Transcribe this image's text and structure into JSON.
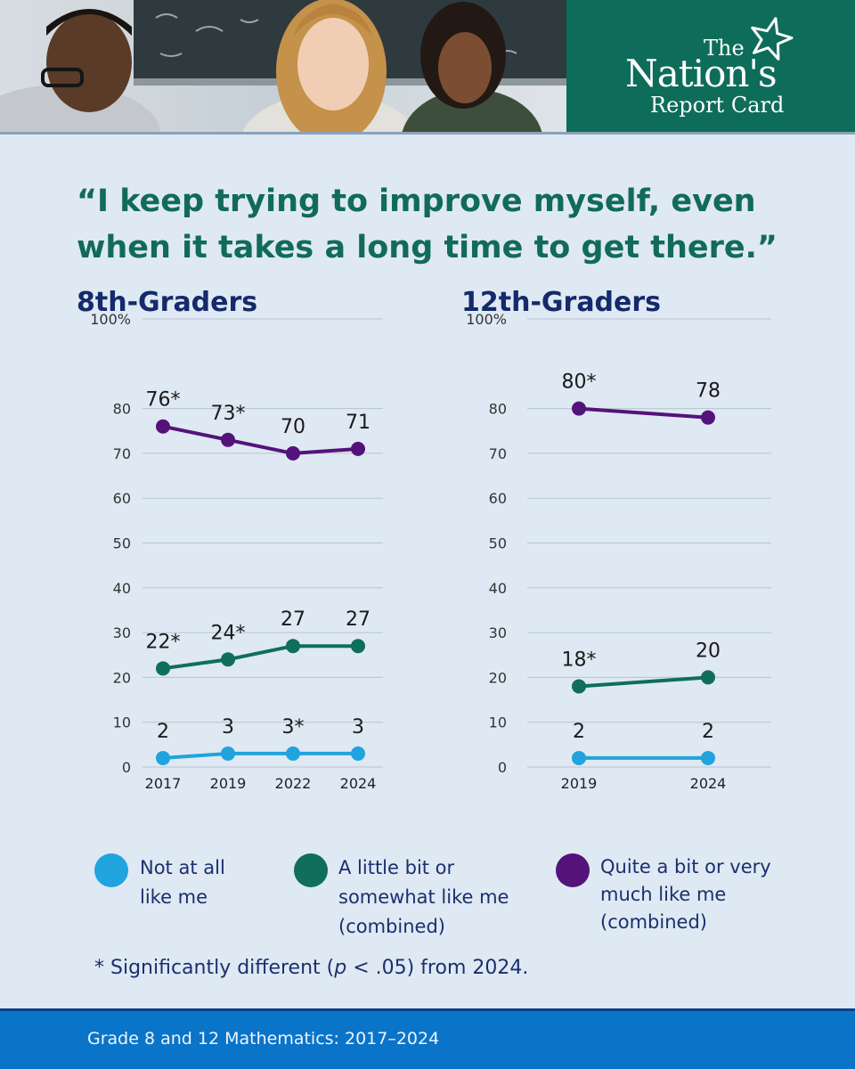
{
  "brand": {
    "the": "The",
    "nations": "Nation's",
    "report_card": "Report Card"
  },
  "quote": "“I keep trying to improve myself, even when it takes a long time to get there.”",
  "colors": {
    "light_blue": "#21a3dd",
    "green": "#0f6e5c",
    "purple": "#54137b",
    "title_navy": "#142a6b"
  },
  "chart_data": [
    {
      "type": "line",
      "title": "8th-Graders",
      "x": [
        "2017",
        "2019",
        "2022",
        "2024"
      ],
      "ylim": [
        0,
        100
      ],
      "yticks": [
        "0",
        "10",
        "20",
        "30",
        "40",
        "50",
        "60",
        "70",
        "80",
        "100%"
      ],
      "grid": true,
      "series": [
        {
          "name": "Quite a bit or very much like me (combined)",
          "values": [
            76,
            73,
            70,
            71
          ],
          "labels": [
            "76*",
            "73*",
            "70",
            "71"
          ]
        },
        {
          "name": "A little bit or somewhat like me (combined)",
          "values": [
            22,
            24,
            27,
            27
          ],
          "labels": [
            "22*",
            "24*",
            "27",
            "27"
          ]
        },
        {
          "name": "Not at all like me",
          "values": [
            2,
            3,
            3,
            3
          ],
          "labels": [
            "2",
            "3",
            "3*",
            "3"
          ]
        }
      ]
    },
    {
      "type": "line",
      "title": "12th-Graders",
      "x": [
        "2019",
        "2024"
      ],
      "ylim": [
        0,
        100
      ],
      "yticks": [
        "0",
        "10",
        "20",
        "30",
        "40",
        "50",
        "60",
        "70",
        "80",
        "100%"
      ],
      "grid": true,
      "series": [
        {
          "name": "Quite a bit or very much like me (combined)",
          "values": [
            80,
            78
          ],
          "labels": [
            "80*",
            "78"
          ]
        },
        {
          "name": "A little bit or somewhat like me (combined)",
          "values": [
            18,
            20
          ],
          "labels": [
            "18*",
            "20"
          ]
        },
        {
          "name": "Not at all like me",
          "values": [
            2,
            2
          ],
          "labels": [
            "2",
            "2"
          ]
        }
      ]
    }
  ],
  "legend": [
    {
      "lines": [
        "Not at all",
        "like me"
      ]
    },
    {
      "lines": [
        "A little bit or",
        "somewhat like me",
        "(combined)"
      ]
    },
    {
      "lines": [
        "Quite a bit or very",
        "much like me",
        "(combined)"
      ]
    }
  ],
  "footnote": {
    "prefix": "* Significantly different (",
    "p": "p",
    "suffix": " < .05) from 2024."
  },
  "footer": "Grade 8 and 12 Mathematics: 2017–2024"
}
